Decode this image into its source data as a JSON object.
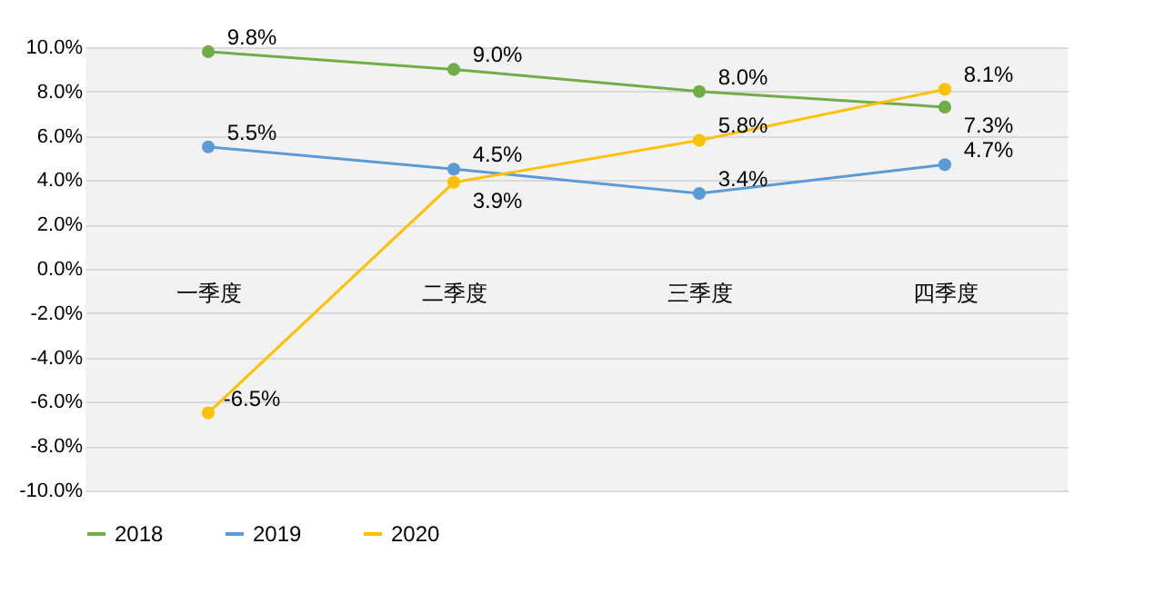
{
  "chart_data": {
    "type": "line",
    "categories": [
      "一季度",
      "二季度",
      "三季度",
      "四季度"
    ],
    "series": [
      {
        "name": "2018",
        "color": "#70ad47",
        "values": [
          9.8,
          9.0,
          8.0,
          7.3
        ],
        "value_labels": [
          "9.8%",
          "9.0%",
          "8.0%",
          "7.3%"
        ]
      },
      {
        "name": "2019",
        "color": "#5b9bd5",
        "values": [
          5.5,
          4.5,
          3.4,
          4.7
        ],
        "value_labels": [
          "5.5%",
          "4.5%",
          "3.4%",
          "4.7%"
        ]
      },
      {
        "name": "2020",
        "color": "#ffc000",
        "values": [
          -6.5,
          3.9,
          5.8,
          8.1
        ],
        "value_labels": [
          "-6.5%",
          "3.9%",
          "5.8%",
          "8.1%"
        ]
      }
    ],
    "ylim": [
      -10,
      10
    ],
    "yticks": [
      {
        "value": -10,
        "label": "-10.0%"
      },
      {
        "value": -8,
        "label": "-8.0%"
      },
      {
        "value": -6,
        "label": "-6.0%"
      },
      {
        "value": -4,
        "label": "-4.0%"
      },
      {
        "value": -2,
        "label": "-2.0%"
      },
      {
        "value": 0,
        "label": "0.0%"
      },
      {
        "value": 2,
        "label": "2.0%"
      },
      {
        "value": 4,
        "label": "4.0%"
      },
      {
        "value": 6,
        "label": "6.0%"
      },
      {
        "value": 8,
        "label": "8.0%"
      },
      {
        "value": 10,
        "label": "10.0%"
      }
    ],
    "grid": "y",
    "legend": "bottom",
    "marker": "circle",
    "line_style": "solid"
  }
}
